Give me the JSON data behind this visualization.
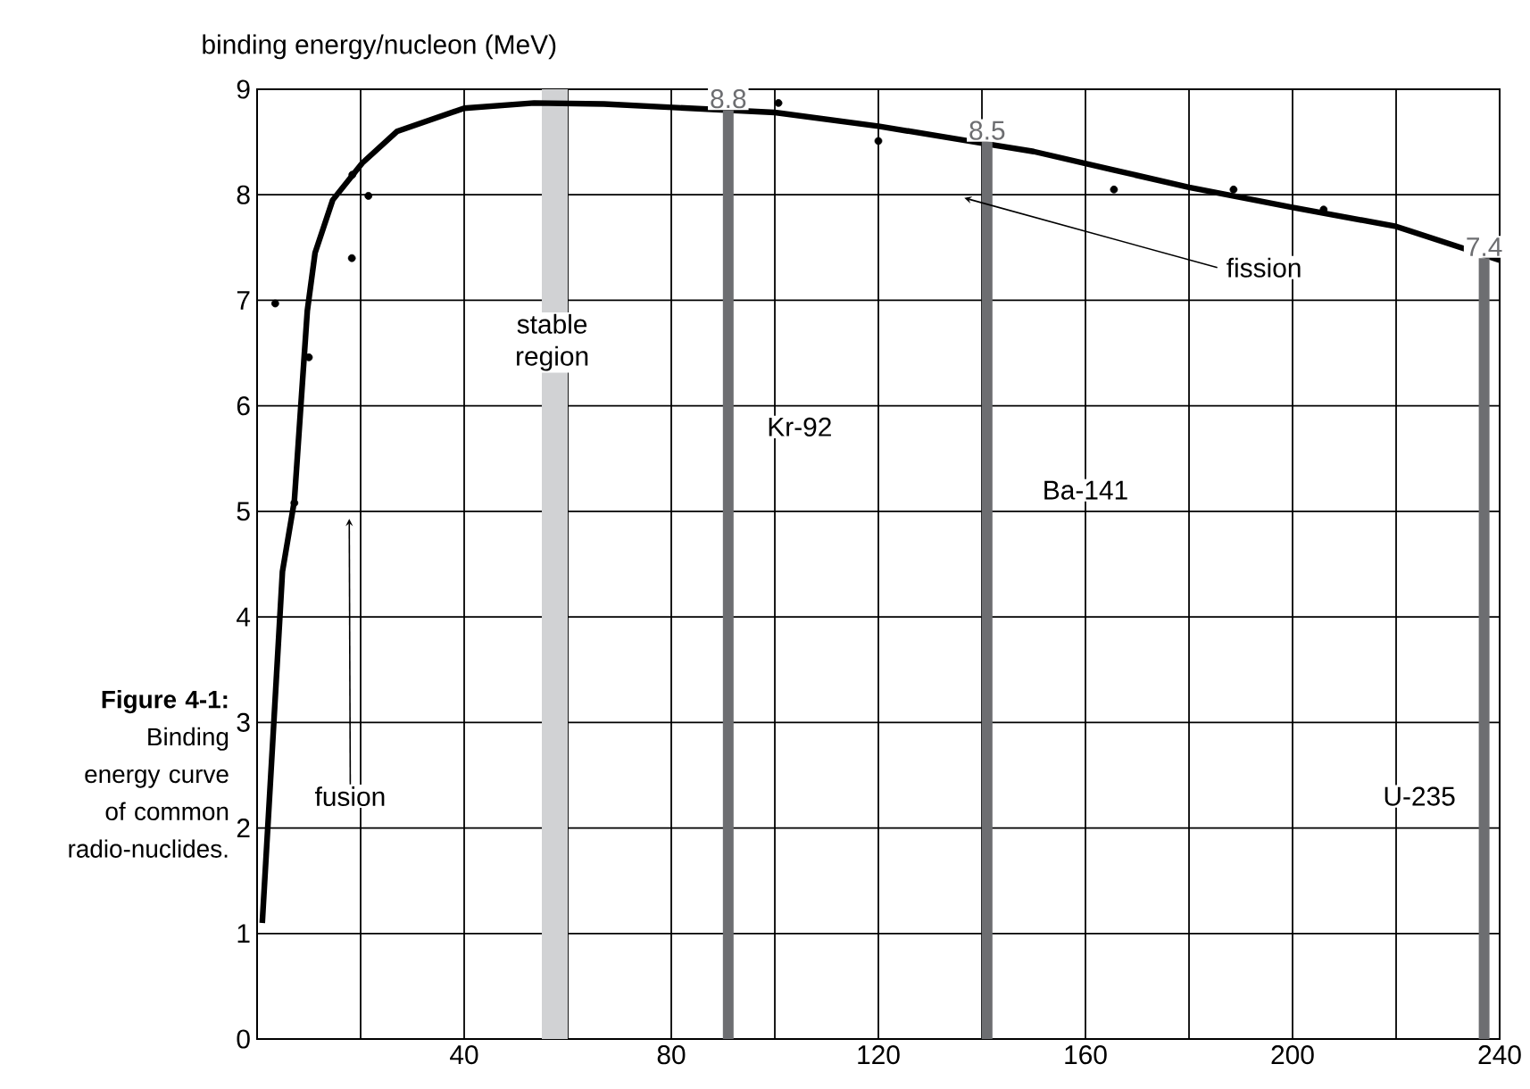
{
  "chart_data": {
    "type": "line",
    "ylabel": "binding energy/nucleon (MeV)",
    "annotations": [
      "**Figure 4-1:** Binding energy curve of common radio-nuclides.",
      "fusion",
      "fission",
      "stable region",
      "Kr-92",
      "Ba-141",
      "U-235"
    ],
    "series": [
      {
        "color": "#000000",
        "x": [
          1,
          3,
          4.9,
          7.2,
          9.7,
          11.2,
          14.6,
          20.3,
          27,
          40,
          53.5,
          67,
          100,
          120,
          140,
          150,
          165,
          180,
          200,
          220,
          240
        ],
        "values": [
          1.1,
          2.8,
          4.43,
          5.1,
          6.9,
          7.45,
          7.95,
          8.3,
          8.6,
          8.82,
          8.87,
          8.86,
          8.78,
          8.65,
          8.49,
          8.41,
          8.24,
          8.07,
          7.88,
          7.7,
          7.38
        ]
      },
      {
        "type": "scatter",
        "color": "#000000",
        "marker": "circle",
        "x": [
          3.5,
          7.2,
          10,
          18.4,
          18.3,
          21.5,
          100.7,
          120,
          165.5,
          188.6,
          206
        ],
        "values": [
          6.97,
          5.08,
          6.46,
          8.19,
          7.4,
          7.99,
          8.87,
          8.51,
          8.05,
          8.05,
          7.86
        ]
      },
      {
        "type": "bar",
        "color": "#6d6e71",
        "x": [
          91,
          141,
          237
        ],
        "values": [
          8.8,
          8.5,
          7.4
        ],
        "data_labels": true
      }
    ],
    "bands": [
      {
        "axis": "x",
        "from": 55,
        "to": 60,
        "color": "#d1d2d4"
      }
    ],
    "xlim": [
      0,
      240
    ],
    "ylim": [
      0,
      9
    ],
    "xticks": [
      {
        "value": 0,
        "label": null
      },
      {
        "value": 20,
        "label": null
      },
      40,
      {
        "value": 60,
        "label": null
      },
      80,
      {
        "value": 100,
        "label": null
      },
      120,
      {
        "value": 140,
        "label": null
      },
      160,
      {
        "value": 180,
        "label": null
      },
      200,
      {
        "value": 220,
        "label": null
      },
      240
    ],
    "yticks": [
      0,
      1,
      2,
      3,
      4,
      5,
      6,
      7,
      8,
      9
    ],
    "grid": true
  }
}
